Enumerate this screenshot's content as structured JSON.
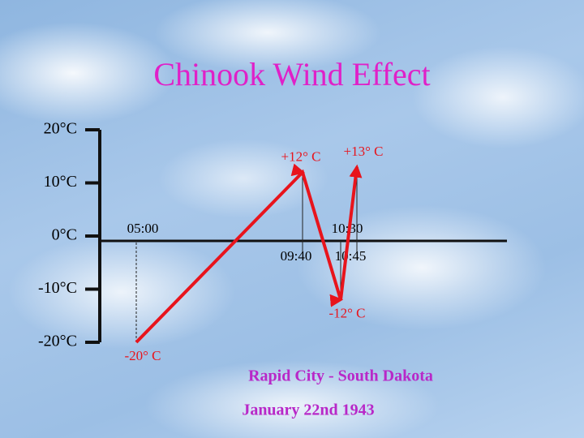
{
  "chart_data": {
    "type": "line",
    "title": "Chinook Wind Effect",
    "categories": [
      "05:00",
      "09:40",
      "10:30",
      "10:45"
    ],
    "series": [
      {
        "color": "#e8141c",
        "values": [
          -20,
          12,
          -12,
          13
        ],
        "value_labels": [
          "-20° C",
          "+12° C",
          "-12° C",
          "+13° C"
        ]
      }
    ],
    "ylim": [
      -20,
      20
    ],
    "yticks": [
      {
        "value": -20,
        "label": "-20°C"
      },
      {
        "value": -10,
        "label": "-10°C"
      },
      {
        "value": 0,
        "label": "0°C"
      },
      {
        "value": 10,
        "label": "10°C"
      },
      {
        "value": 20,
        "label": "20°C"
      }
    ],
    "annotations": [
      "Rapid City - South Dakota",
      "January 22nd 1943"
    ]
  }
}
